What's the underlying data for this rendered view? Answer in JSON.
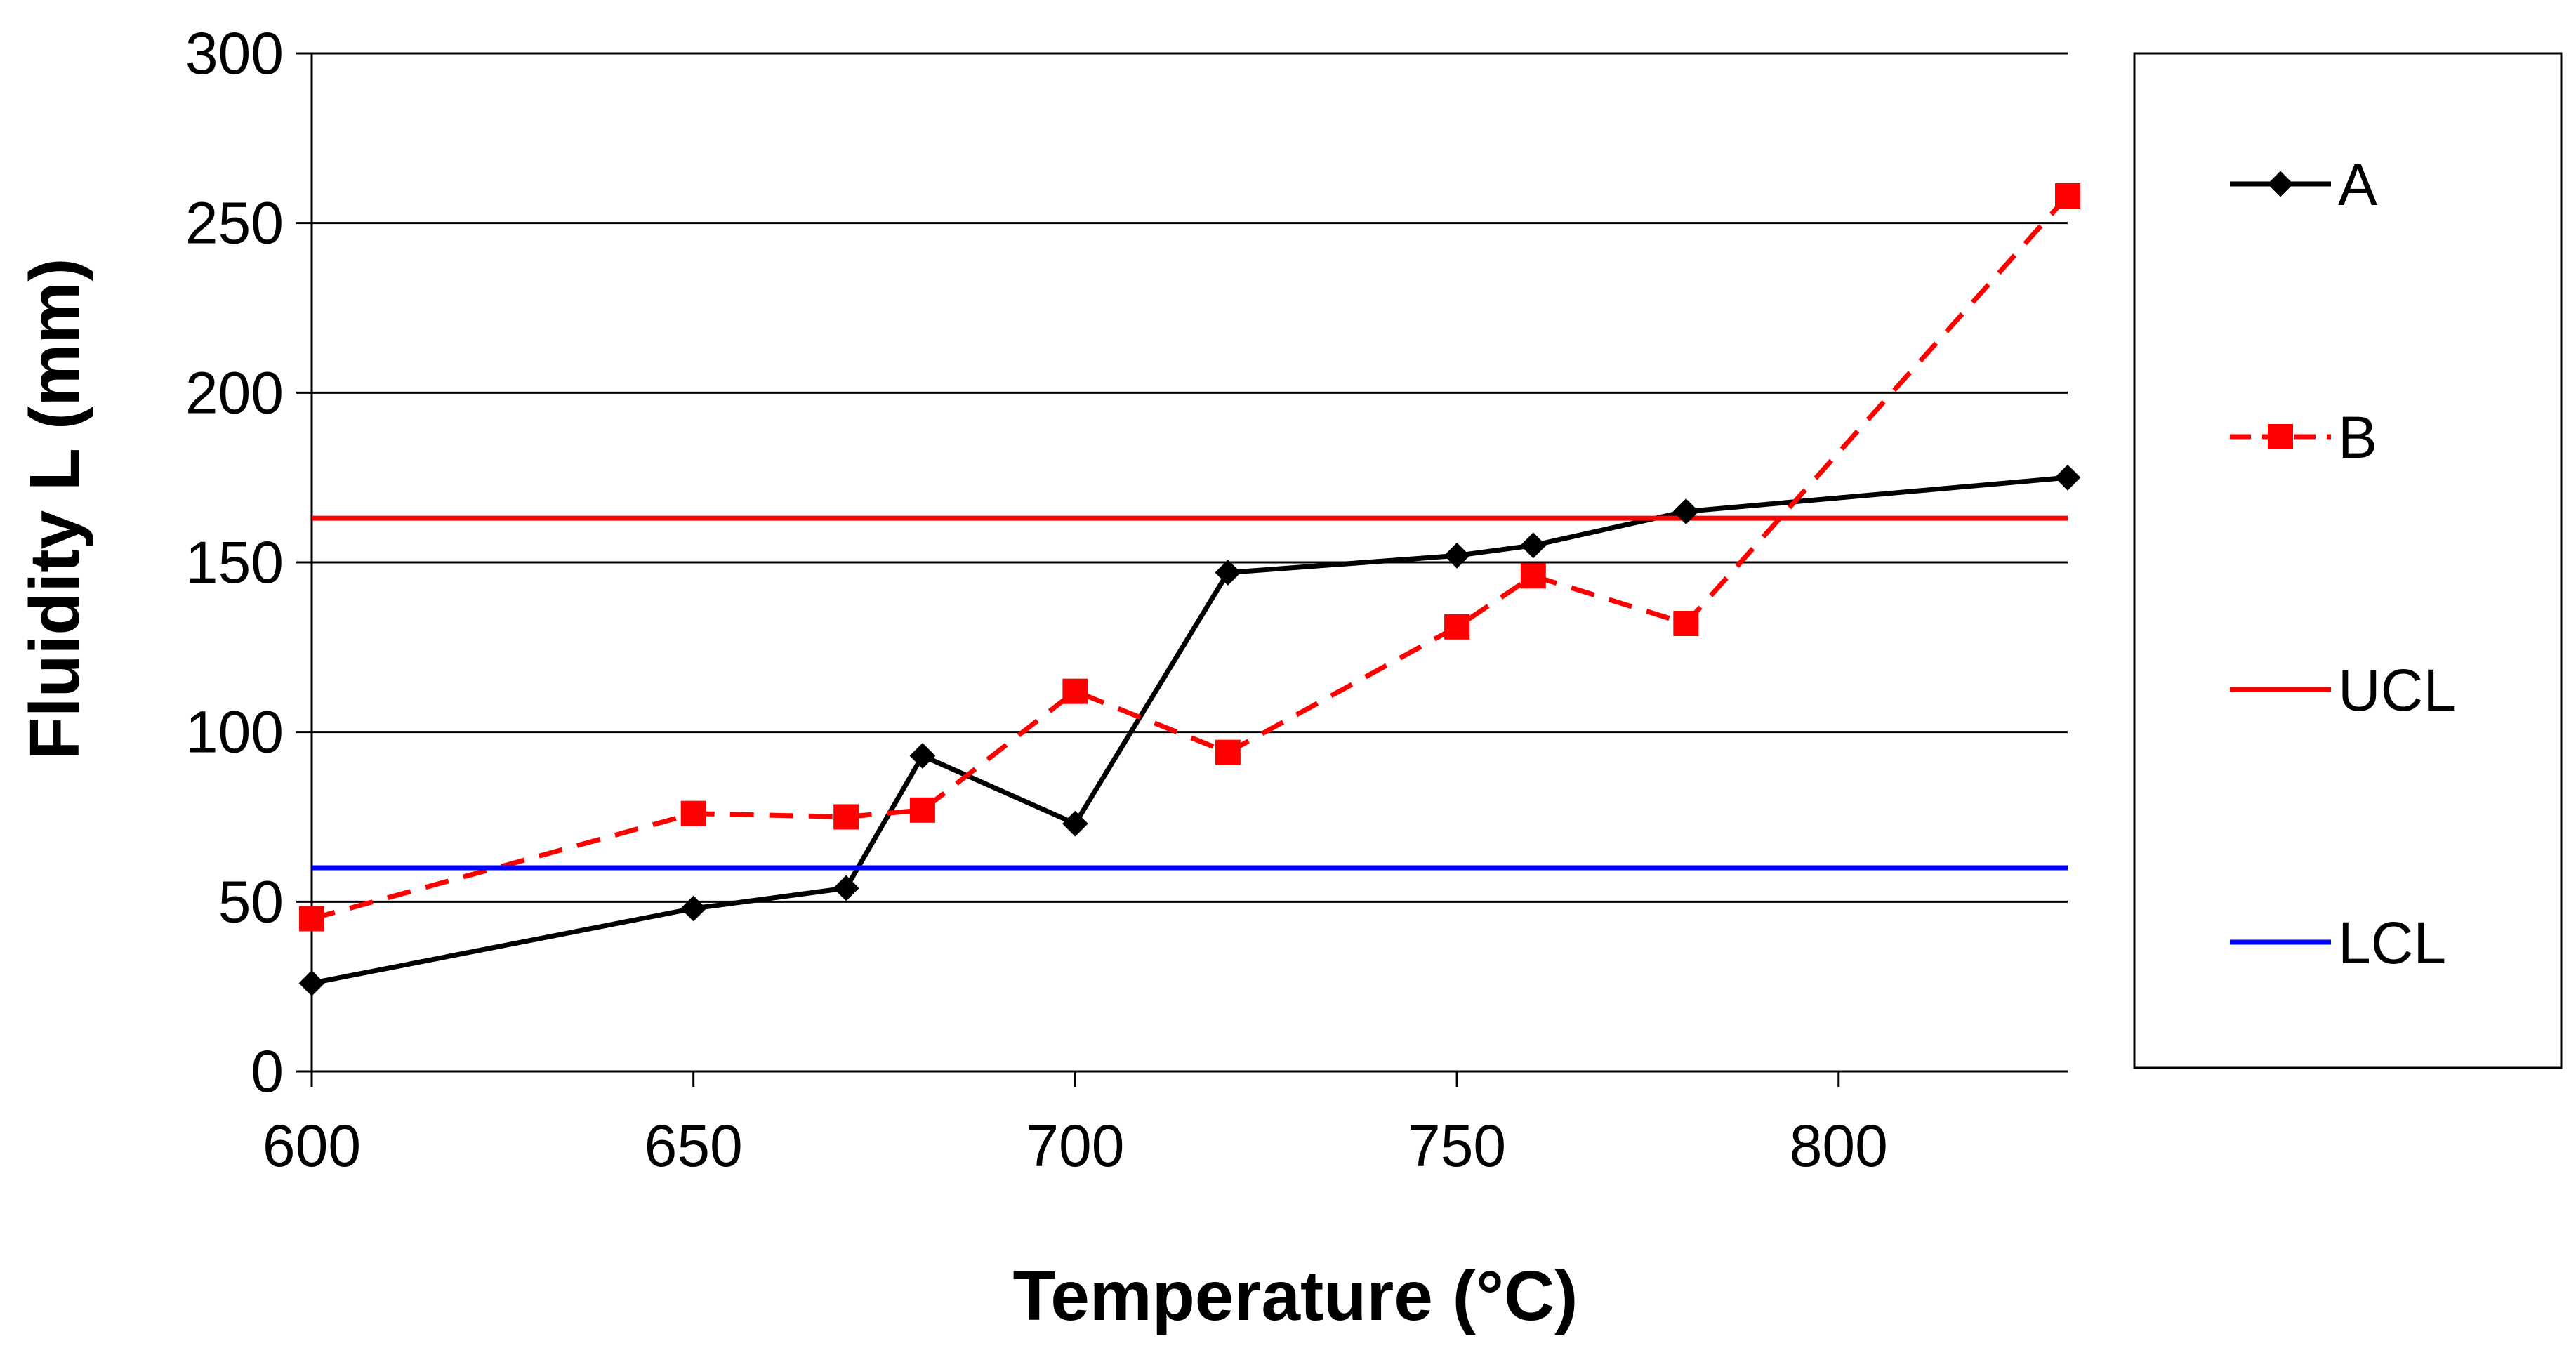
{
  "chart_data": {
    "type": "line",
    "title": "",
    "xlabel": "Temperature (°C)",
    "ylabel": "Fluidity L (mm)",
    "xlim": [
      600,
      830
    ],
    "ylim": [
      0,
      300
    ],
    "xticks": [
      600,
      650,
      700,
      750,
      800
    ],
    "yticks": [
      0,
      50,
      100,
      150,
      200,
      250,
      300
    ],
    "grid": "horizontal",
    "legend_position": "right",
    "series": [
      {
        "name": "A",
        "color": "#000000",
        "style": "solid",
        "marker": "diamond",
        "x": [
          600,
          650,
          670,
          680,
          700,
          720,
          750,
          760,
          780,
          830
        ],
        "y": [
          26,
          48,
          54,
          93,
          73,
          147,
          152,
          155,
          165,
          175
        ]
      },
      {
        "name": "B",
        "color": "#ff0000",
        "style": "dashed",
        "marker": "square",
        "x": [
          600,
          650,
          670,
          680,
          700,
          720,
          750,
          760,
          780,
          830
        ],
        "y": [
          45,
          76,
          75,
          77,
          112,
          94,
          131,
          146,
          132,
          258
        ]
      },
      {
        "name": "UCL",
        "color": "#ff0000",
        "style": "solid",
        "marker": "none",
        "y_constant": 163
      },
      {
        "name": "LCL",
        "color": "#0000ff",
        "style": "solid",
        "marker": "none",
        "y_constant": 60
      }
    ]
  }
}
